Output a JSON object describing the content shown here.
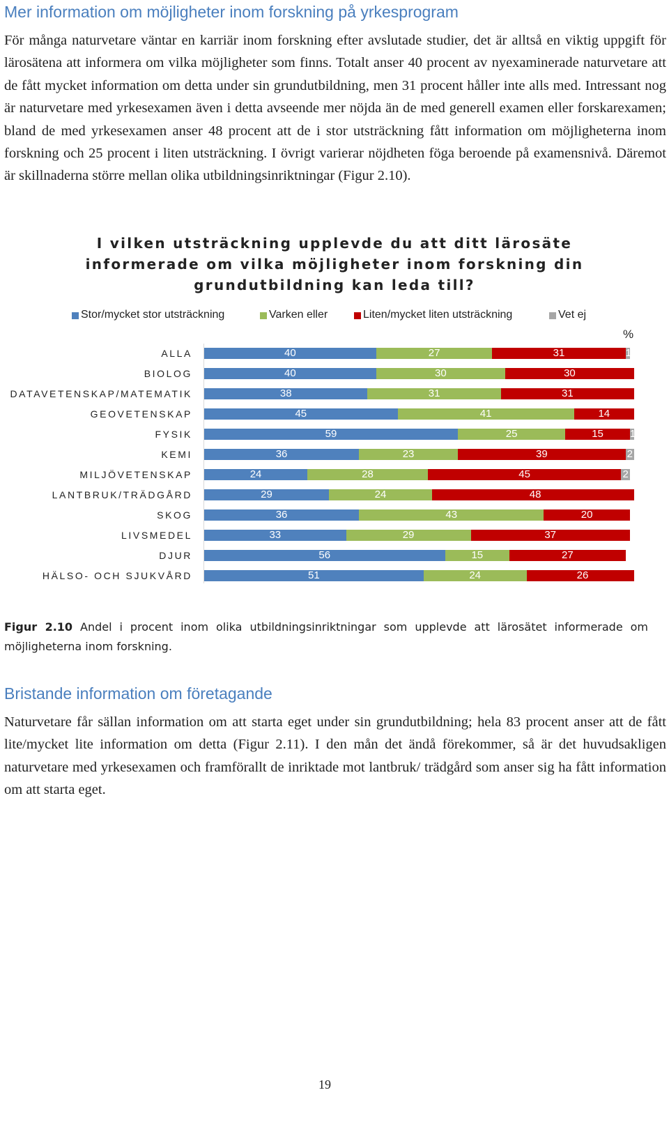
{
  "section1": {
    "heading": "Mer information om möjligheter inom forskning på yrkesprogram",
    "paragraph": "För många naturvetare väntar en karriär inom forskning efter avslutade studier, det är alltså en viktig uppgift för lärosätena att informera om vilka möjligheter som finns. Totalt anser 40 procent av nyexaminerade naturvetare att de fått mycket information om detta under sin grundutbildning, men 31 procent håller inte alls med. Intressant nog är naturvetare med yrkesexamen även i detta avseende mer nöjda än de med generell examen eller forskarexamen; bland de med yrkesexamen anser 48 procent att de i stor utsträckning fått information om möjligheterna inom forskning och 25 procent i liten utsträckning. I övrigt varierar nöjdheten föga beroende på examensnivå. Däremot är skillnaderna större mellan olika utbildningsinriktningar (Figur 2.10)."
  },
  "chart_data": {
    "type": "bar",
    "orientation": "horizontal",
    "stacked": true,
    "title": "I vilken utsträckning upplevde du att ditt lärosäte informerade om vilka möjligheter inom forskning din grundutbildning kan leda till?",
    "unit_label": "%",
    "legend_position": "top",
    "categories": [
      "ALLA",
      "BIOLOG",
      "DATAVETENSKAP/MATEMATIK",
      "GEOVETENSKAP",
      "FYSIK",
      "KEMI",
      "MILJÖVETENSKAP",
      "LANTBRUK/TRÄDGÅRD",
      "SKOG",
      "LIVSMEDEL",
      "DJUR",
      "HÄLSO- OCH SJUKVÅRD"
    ],
    "series": [
      {
        "name": "Stor/mycket stor utsträckning",
        "color": "#4f81bd",
        "values": [
          40,
          40,
          38,
          45,
          59,
          36,
          24,
          29,
          36,
          33,
          56,
          51
        ]
      },
      {
        "name": "Varken eller",
        "color": "#9bbb59",
        "values": [
          27,
          30,
          31,
          41,
          25,
          23,
          28,
          24,
          43,
          29,
          15,
          24
        ]
      },
      {
        "name": "Liten/mycket liten utsträckning",
        "color": "#c00000",
        "values": [
          31,
          30,
          31,
          14,
          15,
          39,
          45,
          48,
          20,
          37,
          27,
          26
        ]
      },
      {
        "name": "Vet ej",
        "color": "#a6a6a6",
        "values": [
          1,
          1,
          0,
          0,
          1,
          2,
          2,
          0,
          0,
          0,
          0,
          0
        ]
      }
    ],
    "xlim": [
      0,
      100
    ]
  },
  "figure_caption": {
    "label": "Figur 2.10",
    "text": " Andel i procent inom olika utbildningsinriktningar som upplevde att lärosätet informerade om möjligheterna inom forskning."
  },
  "section2": {
    "heading": "Bristande information om företagande",
    "paragraph": "Naturvetare får sällan information om att starta eget under sin grundutbildning; hela 83 procent anser att de fått lite/mycket lite information om detta (Figur 2.11). I den mån det ändå förekommer, så är det huvudsakligen naturvetare med yrkesexamen och framförallt de inriktade mot lantbruk/ trädgård som anser sig ha fått information om att starta eget."
  },
  "page_number": "19"
}
